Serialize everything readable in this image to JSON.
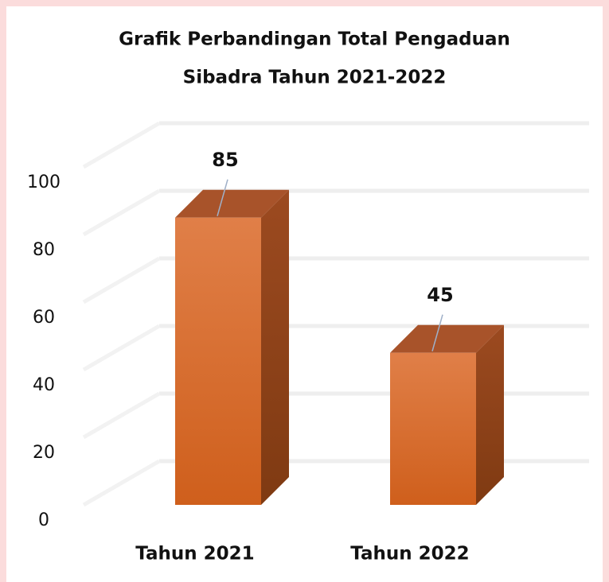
{
  "chart_data": {
    "type": "bar3d",
    "title": [
      "Grafik Perbandingan Total Pengaduan",
      "Sibadra Tahun 2021-2022"
    ],
    "categories": [
      "Tahun 2021",
      "Tahun 2022"
    ],
    "values": [
      85,
      45
    ],
    "color": "#d9692a",
    "ylim": [
      0,
      100
    ],
    "yticks": [
      0,
      20,
      40,
      60,
      80,
      100
    ],
    "grid": true
  }
}
